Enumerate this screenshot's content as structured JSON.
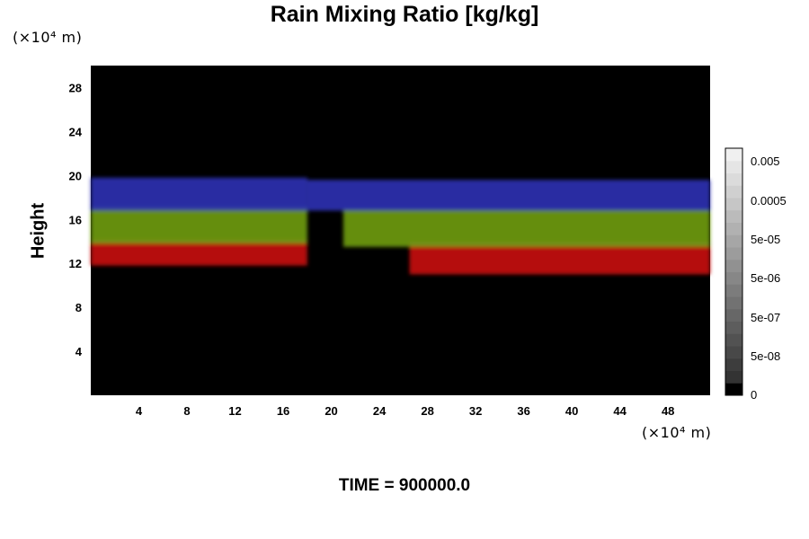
{
  "chart_data": {
    "type": "heatmap",
    "title": "Rain Mixing Ratio [kg/kg]",
    "ylabel": "Height",
    "y_unit": "(×10⁴ m)",
    "x_unit": "(×10⁴ m)",
    "xlim": [
      0,
      51.5
    ],
    "ylim": [
      0,
      30
    ],
    "x_ticks": [
      "4",
      "8",
      "12",
      "16",
      "20",
      "24",
      "28",
      "32",
      "36",
      "40",
      "44",
      "48"
    ],
    "y_ticks": [
      "4",
      "8",
      "12",
      "16",
      "20",
      "24",
      "28"
    ],
    "layers": [
      {
        "color": "#c40e0e",
        "segments": [
          {
            "x": [
              0,
              18
            ],
            "bottom": 11.8,
            "top": 14.2
          },
          {
            "x": [
              26.5,
              51.5
            ],
            "bottom": 11.0,
            "top": 14.0
          }
        ]
      },
      {
        "color": "#6e9a12",
        "segments": [
          {
            "x": [
              0,
              18
            ],
            "bottom": 13.8,
            "top": 17.2
          },
          {
            "x": [
              21,
              51.5
            ],
            "bottom": 13.5,
            "top": 17.0
          }
        ]
      },
      {
        "color": "#2a32b0",
        "segments": [
          {
            "x": [
              0,
              18
            ],
            "bottom": 16.8,
            "top": 19.8
          },
          {
            "x": [
              18,
              51.5
            ],
            "bottom": 16.8,
            "top": 19.6
          }
        ]
      }
    ],
    "colorbar": {
      "labels": [
        "0.005",
        "0.0005",
        "5e-05",
        "5e-06",
        "5e-07",
        "5e-08",
        "0"
      ],
      "levels": 20
    },
    "time_label": "TIME = 900000.0"
  }
}
